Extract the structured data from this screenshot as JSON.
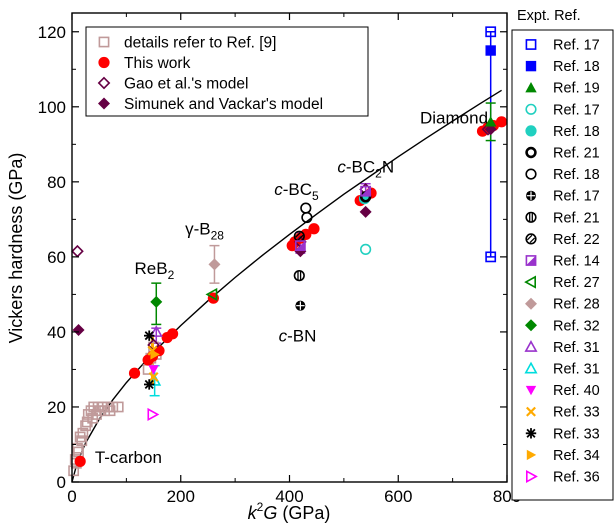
{
  "chart_data": {
    "type": "scatter",
    "xlabel_main": "k",
    "xlabel_sup": "2",
    "xlabel_var": "G",
    "xlabel_unit": " (GPa)",
    "ylabel": "Vickers hardness (GPa)",
    "xlim": [
      0,
      800
    ],
    "ylim": [
      0,
      125
    ],
    "xticks": [
      0,
      200,
      400,
      600,
      800
    ],
    "yticks": [
      0,
      20,
      40,
      60,
      80,
      100,
      120
    ],
    "legend": [
      {
        "label": "details refer to Ref. [9]",
        "color": "#c09a9a",
        "marker": "square-open"
      },
      {
        "label": "This work",
        "color": "#ff0000",
        "marker": "circle-filled"
      },
      {
        "label": "Gao et al.'s model",
        "color": "#660044",
        "marker": "diamond-open"
      },
      {
        "label": "Simunek and Vackar's model",
        "color": "#660044",
        "marker": "diamond-filled"
      }
    ],
    "expt_legend_title": "Expt. Ref.",
    "expt_legend": [
      {
        "label": "Ref. 17",
        "color": "#0000ff",
        "marker": "square-open"
      },
      {
        "label": "Ref. 18",
        "color": "#0000ff",
        "marker": "square-filled"
      },
      {
        "label": "Ref. 19",
        "color": "#008800",
        "marker": "triangle-filled"
      },
      {
        "label": "Ref. 17",
        "color": "#20d0c0",
        "marker": "circle-open"
      },
      {
        "label": "Ref. 18",
        "color": "#20d0c0",
        "marker": "circle-filled"
      },
      {
        "label": "Ref. 21",
        "color": "#000000",
        "marker": "circle-bold"
      },
      {
        "label": "Ref. 18",
        "color": "#000000",
        "marker": "circle-open"
      },
      {
        "label": "Ref. 17",
        "color": "#000000",
        "marker": "circle-cross"
      },
      {
        "label": "Ref. 21",
        "color": "#000000",
        "marker": "circle-vbar"
      },
      {
        "label": "Ref. 22",
        "color": "#000000",
        "marker": "circle-slash"
      },
      {
        "label": "Ref. 14",
        "color": "#9933cc",
        "marker": "square-half"
      },
      {
        "label": "Ref. 27",
        "color": "#008800",
        "marker": "triangle-left-open"
      },
      {
        "label": "Ref. 28",
        "color": "#c09a9a",
        "marker": "diamond-filled"
      },
      {
        "label": "Ref. 32",
        "color": "#008800",
        "marker": "diamond-filled"
      },
      {
        "label": "Ref. 31",
        "color": "#9933cc",
        "marker": "triangle-open"
      },
      {
        "label": "Ref. 31",
        "color": "#00dddd",
        "marker": "triangle-open"
      },
      {
        "label": "Ref. 40",
        "color": "#ff00ff",
        "marker": "triangle-down-filled"
      },
      {
        "label": "Ref. 33",
        "color": "#ffaa00",
        "marker": "x-cross"
      },
      {
        "label": "Ref. 33",
        "color": "#000000",
        "marker": "asterisk"
      },
      {
        "label": "Ref. 34",
        "color": "#ffaa00",
        "marker": "triangle-right-filled"
      },
      {
        "label": "Ref. 36",
        "color": "#ff00ff",
        "marker": "triangle-right-open"
      }
    ],
    "annotations": [
      {
        "parts": [
          {
            "t": "Diamond"
          }
        ],
        "x": 640,
        "y": 95.5
      },
      {
        "parts": [
          {
            "t": "c",
            "it": true
          },
          {
            "t": "-BC"
          },
          {
            "t": "2",
            "sub": true
          },
          {
            "t": "N"
          }
        ],
        "x": 488,
        "y": 82.5
      },
      {
        "parts": [
          {
            "t": "c",
            "it": true
          },
          {
            "t": "-BC"
          },
          {
            "t": "5",
            "sub": true
          }
        ],
        "x": 372,
        "y": 76.5
      },
      {
        "parts": [
          {
            "t": "γ-B"
          },
          {
            "t": "28",
            "sub": true
          }
        ],
        "x": 208,
        "y": 66
      },
      {
        "parts": [
          {
            "t": "ReB"
          },
          {
            "t": "2",
            "sub": true
          }
        ],
        "x": 115,
        "y": 55.5
      },
      {
        "parts": [
          {
            "t": "c",
            "it": true
          },
          {
            "t": "-BN"
          }
        ],
        "x": 380,
        "y": 37.5
      },
      {
        "parts": [
          {
            "t": "T-carbon"
          }
        ],
        "x": 42,
        "y": 5
      }
    ],
    "fit_curve": [
      [
        0,
        0
      ],
      [
        10,
        5.3
      ],
      [
        25,
        10.4
      ],
      [
        50,
        16.7
      ],
      [
        75,
        21.9
      ],
      [
        100,
        26.5
      ],
      [
        150,
        34.6
      ],
      [
        200,
        41.7
      ],
      [
        250,
        48.3
      ],
      [
        300,
        54.5
      ],
      [
        350,
        60.4
      ],
      [
        400,
        66
      ],
      [
        450,
        71.4
      ],
      [
        500,
        76.7
      ],
      [
        550,
        81.7
      ],
      [
        600,
        86.7
      ],
      [
        650,
        91.5
      ],
      [
        700,
        96.2
      ],
      [
        750,
        100.8
      ],
      [
        790,
        104.4
      ]
    ],
    "series": [
      {
        "name": "details refer to Ref. [9]",
        "color": "#c09a9a",
        "marker": "square-open",
        "points": [
          [
            3,
            3
          ],
          [
            6,
            6
          ],
          [
            8,
            5
          ],
          [
            10,
            9
          ],
          [
            12,
            8
          ],
          [
            15,
            12
          ],
          [
            18,
            11
          ],
          [
            20,
            13
          ],
          [
            25,
            15
          ],
          [
            28,
            16
          ],
          [
            30,
            18
          ],
          [
            35,
            19
          ],
          [
            38,
            17
          ],
          [
            40,
            20
          ],
          [
            45,
            18
          ],
          [
            48,
            20
          ],
          [
            50,
            19
          ],
          [
            55,
            20
          ],
          [
            60,
            19
          ],
          [
            65,
            20
          ],
          [
            70,
            19
          ],
          [
            75,
            20
          ],
          [
            85,
            20
          ],
          [
            140,
            30
          ],
          [
            145,
            33
          ],
          [
            150,
            36
          ],
          [
            155,
            34
          ]
        ]
      },
      {
        "name": "This work",
        "color": "#ff0000",
        "marker": "circle-filled",
        "points": [
          [
            15,
            5.5
          ],
          [
            115,
            29
          ],
          [
            140,
            32.5
          ],
          [
            148,
            33.5
          ],
          [
            160,
            35
          ],
          [
            175,
            38.5
          ],
          [
            185,
            39.5
          ],
          [
            260,
            49
          ],
          [
            405,
            63
          ],
          [
            410,
            64
          ],
          [
            420,
            65
          ],
          [
            430,
            66
          ],
          [
            445,
            67.5
          ],
          [
            530,
            75
          ],
          [
            540,
            76
          ],
          [
            550,
            77
          ],
          [
            755,
            93.5
          ],
          [
            765,
            94.5
          ],
          [
            775,
            95
          ],
          [
            790,
            96
          ]
        ]
      },
      {
        "name": "Gao et al.'s model",
        "color": "#660044",
        "marker": "diamond-open",
        "points": [
          [
            10,
            61.5
          ],
          [
            150,
            36.5
          ],
          [
            420,
            64
          ],
          [
            540,
            78
          ],
          [
            765,
            94
          ]
        ]
      },
      {
        "name": "Simunek and Vackar's model",
        "color": "#660044",
        "marker": "diamond-filled",
        "points": [
          [
            12,
            40.5
          ],
          [
            420,
            61.5
          ],
          [
            540,
            72
          ],
          [
            770,
            94
          ]
        ]
      },
      {
        "name": "Expt",
        "color": "#0000ff",
        "marker": "square-open",
        "points": [
          [
            770,
            120
          ],
          [
            770,
            60
          ]
        ]
      },
      {
        "name": "Expt",
        "color": "#0000ff",
        "marker": "square-filled",
        "points": [
          [
            770,
            115
          ]
        ]
      },
      {
        "name": "Expt",
        "color": "#008800",
        "marker": "triangle-filled",
        "points": [
          [
            770,
            96
          ]
        ]
      },
      {
        "name": "Expt",
        "color": "#20d0c0",
        "marker": "circle-open",
        "points": [
          [
            540,
            62
          ]
        ]
      },
      {
        "name": "Expt",
        "color": "#20d0c0",
        "marker": "circle-filled",
        "points": [
          [
            538,
            75.5
          ]
        ]
      },
      {
        "name": "Expt",
        "color": "#000000",
        "marker": "circle-bold",
        "points": [
          [
            540,
            76
          ]
        ]
      },
      {
        "name": "Expt",
        "color": "#000000",
        "marker": "circle-open",
        "points": [
          [
            430,
            73
          ],
          [
            432,
            70.5
          ]
        ]
      },
      {
        "name": "Expt",
        "color": "#000000",
        "marker": "circle-cross",
        "points": [
          [
            420,
            47
          ]
        ]
      },
      {
        "name": "Expt",
        "color": "#000000",
        "marker": "circle-vbar",
        "points": [
          [
            418,
            55
          ]
        ]
      },
      {
        "name": "Expt",
        "color": "#000000",
        "marker": "circle-slash",
        "points": [
          [
            418,
            65.5
          ]
        ]
      },
      {
        "name": "Expt",
        "color": "#9933cc",
        "marker": "square-half",
        "points": [
          [
            540,
            77.5
          ],
          [
            420,
            63
          ]
        ]
      },
      {
        "name": "Expt",
        "color": "#008800",
        "marker": "triangle-left-open",
        "points": [
          [
            258,
            50
          ]
        ]
      },
      {
        "name": "Expt",
        "color": "#c09a9a",
        "marker": "diamond-filled",
        "points": [
          [
            262,
            58
          ]
        ]
      },
      {
        "name": "Expt",
        "color": "#008800",
        "marker": "diamond-filled",
        "points": [
          [
            155,
            48
          ]
        ]
      },
      {
        "name": "Expt",
        "color": "#9933cc",
        "marker": "triangle-open",
        "points": [
          [
            155,
            40
          ]
        ]
      },
      {
        "name": "Expt",
        "color": "#00dddd",
        "marker": "triangle-open",
        "points": [
          [
            152,
            27
          ]
        ]
      },
      {
        "name": "Expt",
        "color": "#ff00ff",
        "marker": "triangle-down-filled",
        "points": [
          [
            150,
            30
          ]
        ]
      },
      {
        "name": "Expt",
        "color": "#ffaa00",
        "marker": "x-cross",
        "points": [
          [
            148,
            35
          ],
          [
            150,
            28
          ]
        ]
      },
      {
        "name": "Expt",
        "color": "#000000",
        "marker": "asterisk",
        "points": [
          [
            142,
            39
          ],
          [
            142,
            26
          ]
        ]
      },
      {
        "name": "Expt",
        "color": "#ffaa00",
        "marker": "triangle-right-filled",
        "points": [
          [
            152,
            34
          ]
        ]
      },
      {
        "name": "Expt",
        "color": "#ff00ff",
        "marker": "triangle-right-open",
        "points": [
          [
            148,
            18
          ]
        ]
      }
    ],
    "error_bars": [
      {
        "x": 770,
        "y_low": 60,
        "y_high": 120,
        "color": "#0000ff",
        "cap": true
      },
      {
        "x": 770,
        "y_low": 91,
        "y_high": 101,
        "color": "#008800",
        "cap": true
      },
      {
        "x": 155,
        "y_low": 42,
        "y_high": 53,
        "color": "#008800",
        "cap": true
      },
      {
        "x": 262,
        "y_low": 53,
        "y_high": 63,
        "color": "#c09a9a",
        "cap": true
      },
      {
        "x": 155,
        "y_low": 37,
        "y_high": 41,
        "color": "#9933cc",
        "cap": true
      },
      {
        "x": 152,
        "y_low": 23,
        "y_high": 31,
        "color": "#00dddd",
        "cap": true
      },
      {
        "x": 148,
        "y_low": 26,
        "y_high": 39,
        "color": "#ffaa00",
        "cap": false
      },
      {
        "x": 420,
        "y_low": 61,
        "y_high": 66.5,
        "color": "#9933cc",
        "cap": true
      },
      {
        "x": 540,
        "y_low": 76,
        "y_high": 79.5,
        "color": "#9933cc",
        "cap": true
      }
    ]
  }
}
